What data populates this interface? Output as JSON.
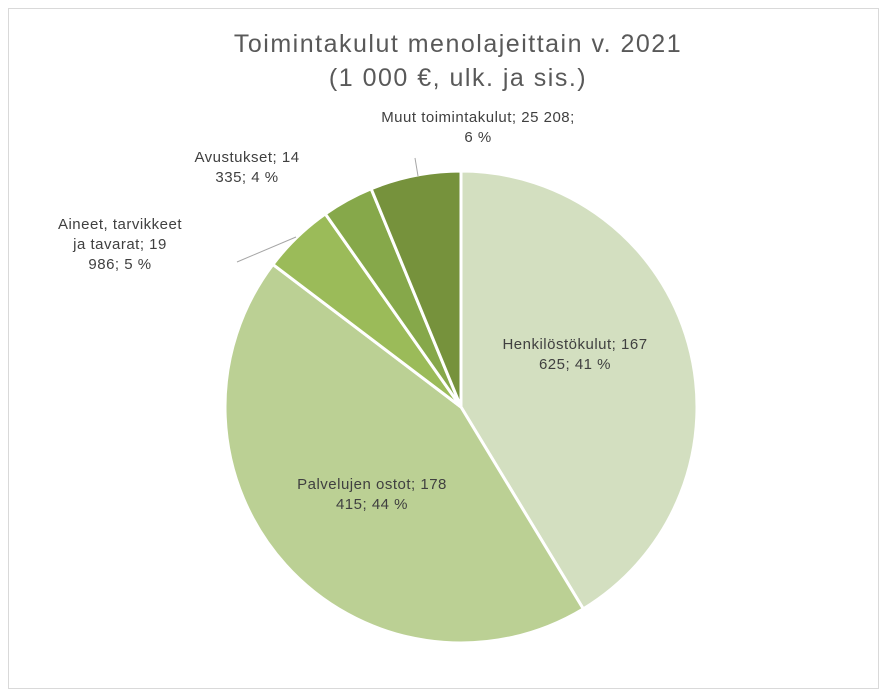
{
  "chart_data": {
    "type": "pie",
    "title": "Toimintakulut menolajeittain v. 2021",
    "subtitle": "(1 000 €, ulk. ja sis.)",
    "values": [
      167625,
      178415,
      19986,
      14335,
      25208
    ],
    "value_labels": [
      "Henkilöstökulut; 167 625; 41 %",
      "Palvelujen ostot; 178 415; 44 %",
      "Aineet, tarvikkeet ja tavarat; 19 986; 5 %",
      "Avustukset; 14 335; 4 %",
      "Muut toimintakulut; 25 208; 6 %"
    ],
    "colors": [
      "#d3dfc0",
      "#bbd094",
      "#9bbb59",
      "#86a84a",
      "#76923c"
    ]
  }
}
